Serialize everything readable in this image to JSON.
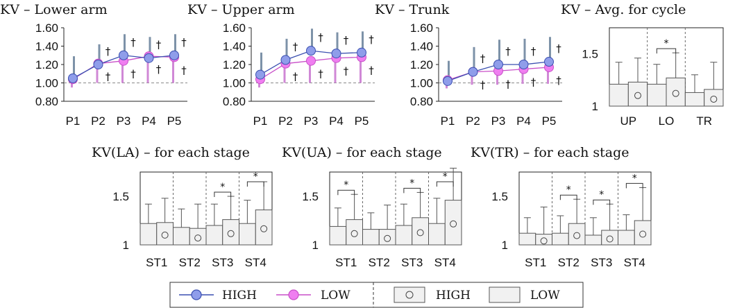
{
  "chart_data": [
    {
      "type": "line",
      "title": "KV – Lower arm",
      "categories": [
        "P1",
        "P2",
        "P3",
        "P4",
        "P5"
      ],
      "yticks": [
        "0.80",
        "1.00",
        "1.20",
        "1.40",
        "1.60"
      ],
      "ylim": [
        0.8,
        1.6
      ],
      "reference_line": 1.0,
      "series": [
        {
          "name": "HIGH",
          "values": [
            1.05,
            1.2,
            1.3,
            1.27,
            1.3
          ],
          "upper": [
            1.29,
            1.42,
            1.53,
            1.5,
            1.53
          ]
        },
        {
          "name": "LOW",
          "values": [
            1.04,
            1.21,
            1.24,
            1.29,
            1.28
          ],
          "lower": [
            0.95,
            1.0,
            1.0,
            1.0,
            1.0
          ]
        }
      ],
      "marks_upper": [
        "",
        "†",
        "†",
        "†",
        "†"
      ],
      "marks_lower": [
        "",
        "†",
        "†",
        "†",
        "†"
      ]
    },
    {
      "type": "line",
      "title": "KV – Upper arm",
      "categories": [
        "P1",
        "P2",
        "P3",
        "P4",
        "P5"
      ],
      "yticks": [
        "0.80",
        "1.00",
        "1.20",
        "1.40",
        "1.60"
      ],
      "ylim": [
        0.8,
        1.6
      ],
      "reference_line": 1.0,
      "series": [
        {
          "name": "HIGH",
          "values": [
            1.09,
            1.25,
            1.35,
            1.32,
            1.33
          ],
          "upper": [
            1.33,
            1.48,
            1.59,
            1.55,
            1.56
          ]
        },
        {
          "name": "LOW",
          "values": [
            1.04,
            1.21,
            1.24,
            1.27,
            1.28
          ],
          "lower": [
            0.95,
            1.0,
            1.0,
            1.0,
            1.0
          ]
        }
      ],
      "marks_upper": [
        "",
        "†",
        "†",
        "†",
        "†"
      ],
      "marks_lower": [
        "",
        "†",
        "†",
        "†",
        "†"
      ]
    },
    {
      "type": "line",
      "title": "KV – Trunk",
      "categories": [
        "P1",
        "P2",
        "P3",
        "P4",
        "P5"
      ],
      "yticks": [
        "0.80",
        "1.00",
        "1.20",
        "1.40",
        "1.60"
      ],
      "ylim": [
        0.8,
        1.6
      ],
      "reference_line": 1.0,
      "series": [
        {
          "name": "HIGH",
          "values": [
            1.02,
            1.12,
            1.2,
            1.2,
            1.23
          ],
          "upper": [
            1.24,
            1.39,
            1.47,
            1.48,
            1.5
          ]
        },
        {
          "name": "LOW",
          "values": [
            1.03,
            1.12,
            1.13,
            1.15,
            1.17
          ],
          "lower": [
            0.94,
            0.98,
            0.98,
            0.99,
            0.99
          ]
        }
      ],
      "marks_upper": [
        "",
        "†",
        "†",
        "†",
        "†"
      ],
      "marks_lower": [
        "",
        "†",
        "†",
        "†",
        "†"
      ]
    },
    {
      "type": "bar",
      "title": "KV – Avg. for cycle",
      "categories": [
        "UP",
        "LO",
        "TR"
      ],
      "yticks": [
        "1",
        "1.5"
      ],
      "ylim": [
        1.0,
        1.75
      ],
      "series": [
        {
          "name": "LOW",
          "values": [
            1.21,
            1.21,
            1.13
          ],
          "upper": [
            1.42,
            1.4,
            1.3
          ]
        },
        {
          "name": "HIGH",
          "values": [
            1.23,
            1.27,
            1.16
          ],
          "upper": [
            1.46,
            1.51,
            1.42
          ]
        }
      ],
      "significance": [
        "",
        "*",
        ""
      ]
    },
    {
      "type": "bar",
      "title": "KV(LA) – for each stage",
      "categories": [
        "ST1",
        "ST2",
        "ST3",
        "ST4"
      ],
      "yticks": [
        "1",
        "1.5"
      ],
      "ylim": [
        1.0,
        1.75
      ],
      "series": [
        {
          "name": "LOW",
          "values": [
            1.22,
            1.18,
            1.2,
            1.22
          ],
          "upper": [
            1.42,
            1.37,
            1.42,
            1.46
          ]
        },
        {
          "name": "HIGH",
          "values": [
            1.23,
            1.17,
            1.26,
            1.36
          ],
          "upper": [
            1.48,
            1.42,
            1.5,
            1.65
          ]
        }
      ],
      "significance": [
        "",
        "",
        "*",
        "*"
      ]
    },
    {
      "type": "bar",
      "title": "KV(UA) – for each stage",
      "categories": [
        "ST1",
        "ST2",
        "ST3",
        "ST4"
      ],
      "yticks": [
        "1",
        "1.5"
      ],
      "ylim": [
        1.0,
        1.75
      ],
      "series": [
        {
          "name": "LOW",
          "values": [
            1.19,
            1.16,
            1.2,
            1.22
          ],
          "upper": [
            1.38,
            1.33,
            1.42,
            1.48
          ]
        },
        {
          "name": "HIGH",
          "values": [
            1.26,
            1.16,
            1.28,
            1.46
          ],
          "upper": [
            1.52,
            1.41,
            1.54,
            1.79
          ]
        }
      ],
      "significance": [
        "*",
        "",
        "*",
        "*"
      ]
    },
    {
      "type": "bar",
      "title": "KV(TR) – for each stage",
      "categories": [
        "ST1",
        "ST2",
        "ST3",
        "ST4"
      ],
      "yticks": [
        "1",
        "1.5"
      ],
      "ylim": [
        1.0,
        1.75
      ],
      "series": [
        {
          "name": "LOW",
          "values": [
            1.12,
            1.12,
            1.1,
            1.15
          ],
          "upper": [
            1.28,
            1.3,
            1.28,
            1.31
          ]
        },
        {
          "name": "HIGH",
          "values": [
            1.11,
            1.22,
            1.15,
            1.25
          ],
          "upper": [
            1.39,
            1.47,
            1.42,
            1.59
          ]
        }
      ],
      "significance": [
        "",
        "*",
        "*",
        "*"
      ]
    }
  ],
  "legend": {
    "line_high": "HIGH",
    "line_low": "LOW",
    "bar_high": "HIGH",
    "bar_low": "LOW"
  },
  "colors": {
    "high_line": "#3a4fb0",
    "high_fill": "#8f9dea",
    "low_line": "#c84fc8",
    "low_fill": "#ef7ef0",
    "high_err": "#7d92a8",
    "low_err": "#d088d6",
    "bar_fill": "#f1f1f1"
  }
}
